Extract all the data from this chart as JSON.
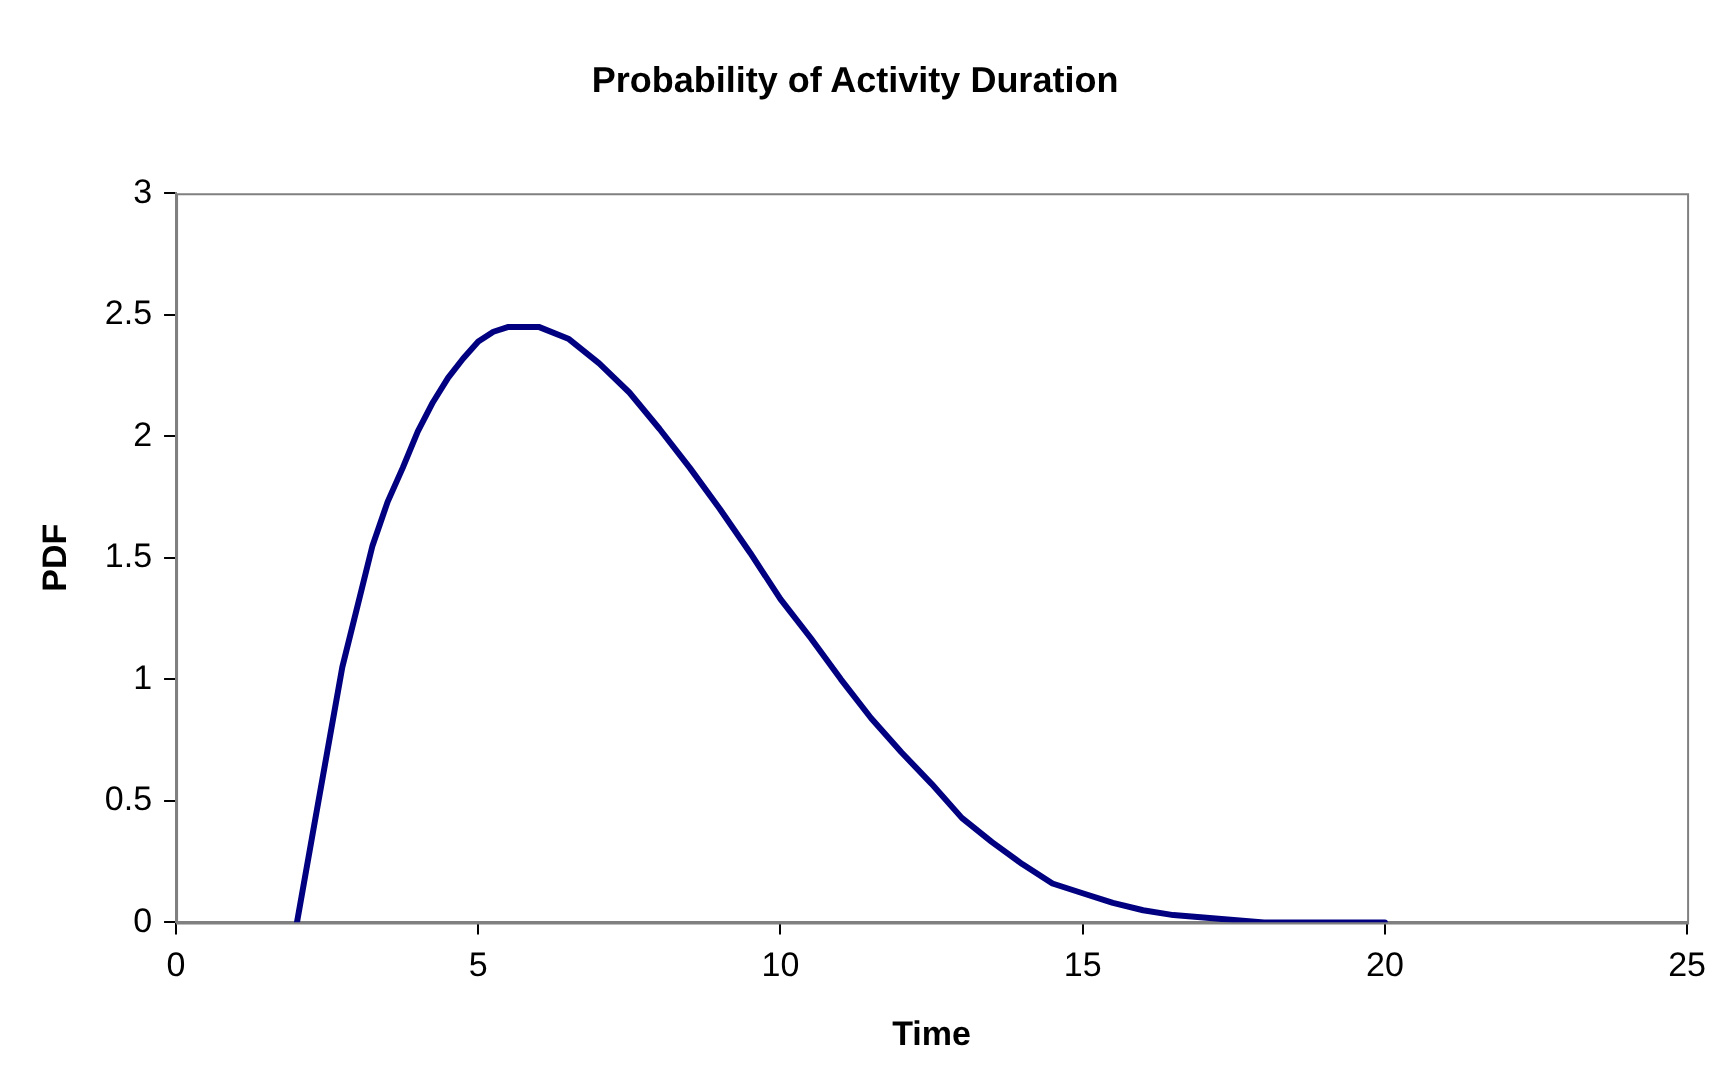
{
  "chart_data": {
    "type": "line",
    "title": "Probability of Activity Duration",
    "xlabel": "Time",
    "ylabel": "PDF",
    "series": [
      {
        "color": "#000080",
        "x": [
          2,
          2.25,
          2.5,
          2.75,
          3,
          3.25,
          3.5,
          3.75,
          4,
          4.25,
          4.5,
          4.75,
          5,
          5.25,
          5.5,
          6,
          6.5,
          7,
          7.5,
          8,
          8.5,
          9,
          9.5,
          10,
          10.5,
          11,
          11.5,
          12,
          12.5,
          13,
          13.5,
          14,
          14.5,
          15,
          15.5,
          16,
          16.5,
          17,
          17.5,
          18,
          19,
          20
        ],
        "values": [
          0,
          0.35,
          0.7,
          1.05,
          1.3,
          1.55,
          1.73,
          1.87,
          2.02,
          2.14,
          2.24,
          2.32,
          2.39,
          2.43,
          2.45,
          2.45,
          2.4,
          2.3,
          2.18,
          2.03,
          1.87,
          1.7,
          1.52,
          1.33,
          1.17,
          1,
          0.84,
          0.7,
          0.57,
          0.43,
          0.33,
          0.24,
          0.16,
          0.12,
          0.08,
          0.05,
          0.03,
          0.02,
          0.01,
          0,
          0,
          0
        ]
      }
    ],
    "xlim": [
      0,
      25
    ],
    "xticks": [
      0,
      5,
      10,
      15,
      20,
      25
    ],
    "ylim": [
      0,
      3
    ],
    "yticks": [
      0,
      0.5,
      1,
      1.5,
      2,
      2.5,
      3
    ],
    "grid": false,
    "legend": false,
    "marker": "none",
    "line_style": "solid"
  }
}
